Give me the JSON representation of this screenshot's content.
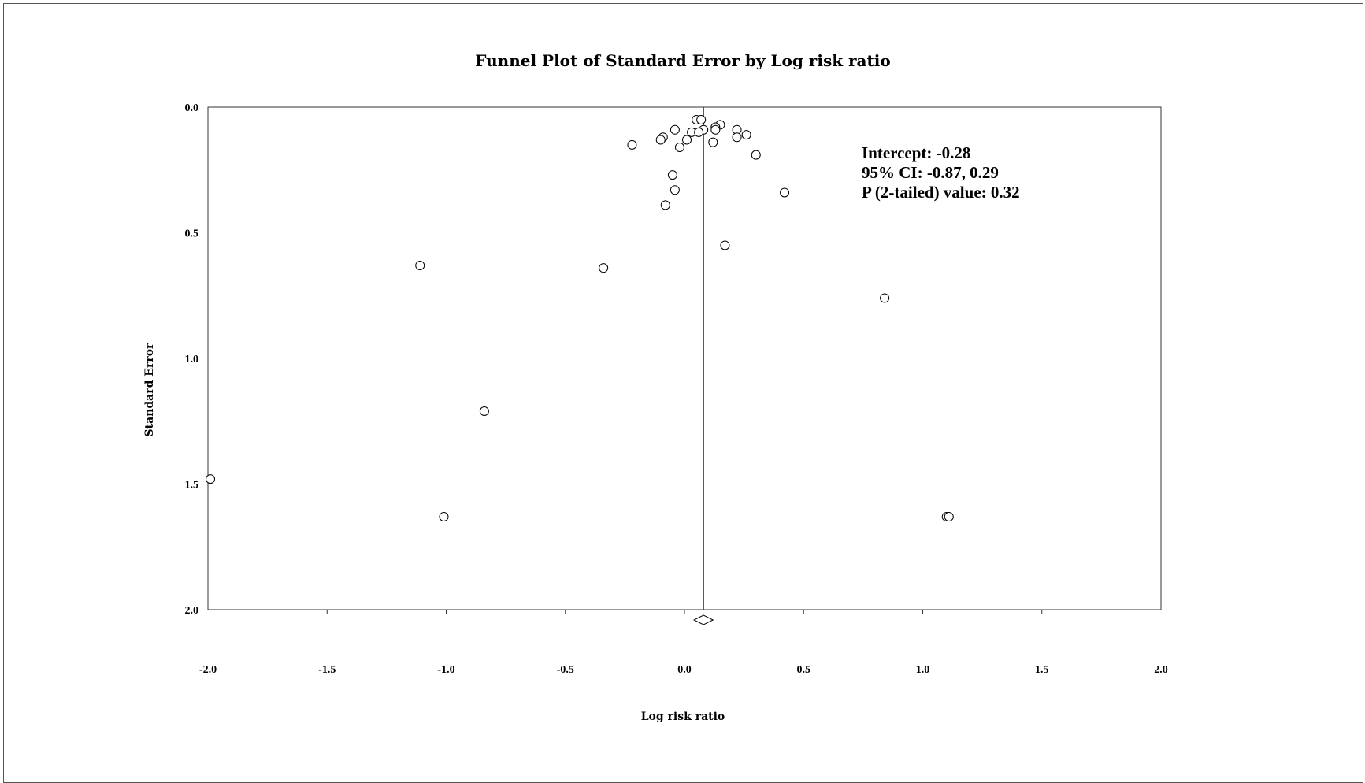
{
  "chart_data": {
    "type": "scatter",
    "title": "Funnel Plot of Standard Error by Log risk ratio",
    "xlabel": "Log risk ratio",
    "ylabel": "Standard Error",
    "xlim": [
      -2.0,
      2.0
    ],
    "ylim": [
      0.0,
      2.0
    ],
    "y_inverted": true,
    "x_ticks": [
      "-2.0",
      "-1.5",
      "-1.0",
      "-0.5",
      "0.0",
      "0.5",
      "1.0",
      "1.5",
      "2.0"
    ],
    "y_ticks": [
      "0.0",
      "0.5",
      "1.0",
      "1.5",
      "2.0"
    ],
    "grid": false,
    "reference_line_x": 0.08,
    "summary_diamond": {
      "estimate": 0.08,
      "lower": 0.04,
      "upper": 0.12
    },
    "points": [
      {
        "x": 0.05,
        "y": 0.05
      },
      {
        "x": 0.07,
        "y": 0.05
      },
      {
        "x": 0.15,
        "y": 0.07
      },
      {
        "x": 0.13,
        "y": 0.08
      },
      {
        "x": 0.13,
        "y": 0.09
      },
      {
        "x": 0.08,
        "y": 0.09
      },
      {
        "x": -0.04,
        "y": 0.09
      },
      {
        "x": 0.22,
        "y": 0.09
      },
      {
        "x": 0.03,
        "y": 0.1
      },
      {
        "x": 0.06,
        "y": 0.1
      },
      {
        "x": 0.26,
        "y": 0.11
      },
      {
        "x": -0.09,
        "y": 0.12
      },
      {
        "x": 0.22,
        "y": 0.12
      },
      {
        "x": -0.1,
        "y": 0.13
      },
      {
        "x": 0.01,
        "y": 0.13
      },
      {
        "x": 0.12,
        "y": 0.14
      },
      {
        "x": -0.22,
        "y": 0.15
      },
      {
        "x": -0.02,
        "y": 0.16
      },
      {
        "x": 0.3,
        "y": 0.19
      },
      {
        "x": -0.05,
        "y": 0.27
      },
      {
        "x": -0.04,
        "y": 0.33
      },
      {
        "x": 0.42,
        "y": 0.34
      },
      {
        "x": -0.08,
        "y": 0.39
      },
      {
        "x": 0.17,
        "y": 0.55
      },
      {
        "x": -1.11,
        "y": 0.63
      },
      {
        "x": -0.34,
        "y": 0.64
      },
      {
        "x": 0.84,
        "y": 0.76
      },
      {
        "x": -0.84,
        "y": 1.21
      },
      {
        "x": -1.99,
        "y": 1.48
      },
      {
        "x": -1.01,
        "y": 1.63
      },
      {
        "x": 1.1,
        "y": 1.63
      },
      {
        "x": 1.11,
        "y": 1.63
      }
    ],
    "annotation": {
      "intercept": "Intercept: -0.28",
      "ci": "95% CI: -0.87, 0.29",
      "p_value": "P (2-tailed) value: 0.32"
    }
  }
}
